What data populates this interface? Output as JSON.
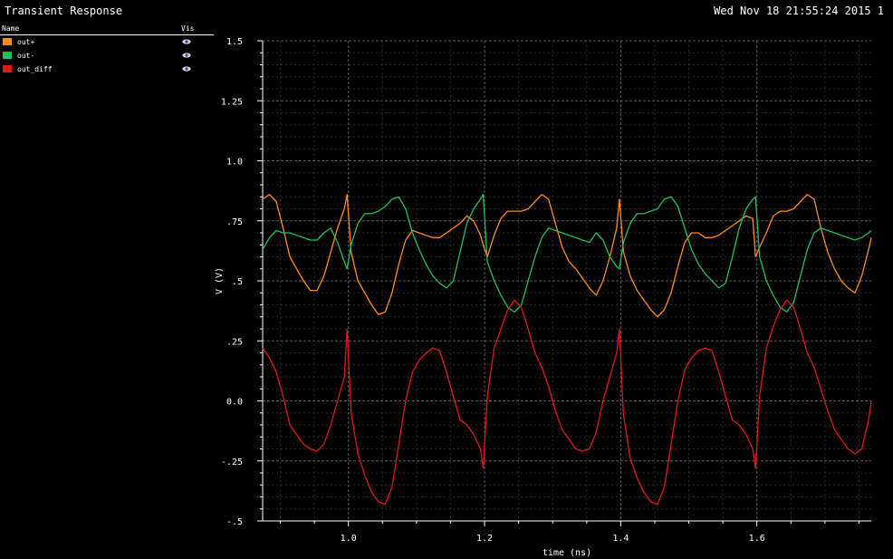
{
  "header": {
    "title": "Transient Response",
    "datetime": "Wed Nov 18 21:55:24 2015 1"
  },
  "legend": {
    "name_header": "Name",
    "vis_header": "Vis",
    "items": [
      {
        "name": "out+",
        "color": "#ff8c1a"
      },
      {
        "name": "out-",
        "color": "#1fc060"
      },
      {
        "name": "out_diff",
        "color": "#e01818"
      }
    ]
  },
  "chart_data": {
    "type": "line",
    "xlabel": "time (ns)",
    "ylabel": "V (V)",
    "xlim": [
      0.874,
      1.768
    ],
    "ylim": [
      -0.5,
      1.5
    ],
    "x_ticks": [
      1.0,
      1.2,
      1.4,
      1.6
    ],
    "x_tick_labels": [
      "1.0",
      "1.2",
      "1.4",
      "1.6"
    ],
    "y_ticks": [
      -0.5,
      -0.25,
      0.0,
      0.25,
      0.5,
      0.75,
      1.0,
      1.25,
      1.5
    ],
    "y_tick_labels": [
      "-.5",
      "-.25",
      "0.0",
      ".25",
      ".5",
      ".75",
      "1.0",
      "1.25",
      "1.5"
    ],
    "grid": true,
    "series": [
      {
        "name": "out+",
        "color": "#ff8c1a",
        "x": [
          0.874,
          0.884,
          0.894,
          0.904,
          0.914,
          0.924,
          0.934,
          0.944,
          0.954,
          0.964,
          0.974,
          0.984,
          0.994,
          0.998,
          1.004,
          1.014,
          1.024,
          1.034,
          1.044,
          1.054,
          1.064,
          1.074,
          1.084,
          1.094,
          1.104,
          1.114,
          1.124,
          1.134,
          1.144,
          1.154,
          1.164,
          1.174,
          1.184,
          1.194,
          1.198,
          1.204,
          1.214,
          1.224,
          1.234,
          1.244,
          1.254,
          1.264,
          1.274,
          1.284,
          1.294,
          1.304,
          1.314,
          1.324,
          1.334,
          1.344,
          1.354,
          1.364,
          1.374,
          1.384,
          1.394,
          1.398,
          1.404,
          1.414,
          1.424,
          1.434,
          1.444,
          1.454,
          1.464,
          1.474,
          1.484,
          1.494,
          1.504,
          1.514,
          1.524,
          1.534,
          1.544,
          1.554,
          1.564,
          1.574,
          1.584,
          1.594,
          1.598,
          1.604,
          1.614,
          1.624,
          1.634,
          1.644,
          1.654,
          1.664,
          1.674,
          1.684,
          1.694,
          1.704,
          1.714,
          1.724,
          1.734,
          1.744,
          1.754,
          1.764,
          1.768
        ],
        "y": [
          0.84,
          0.86,
          0.83,
          0.72,
          0.6,
          0.55,
          0.5,
          0.46,
          0.46,
          0.52,
          0.62,
          0.72,
          0.8,
          0.86,
          0.62,
          0.5,
          0.45,
          0.4,
          0.36,
          0.37,
          0.45,
          0.57,
          0.67,
          0.71,
          0.7,
          0.69,
          0.68,
          0.68,
          0.7,
          0.72,
          0.74,
          0.77,
          0.75,
          0.69,
          0.65,
          0.6,
          0.69,
          0.76,
          0.79,
          0.79,
          0.79,
          0.8,
          0.83,
          0.86,
          0.84,
          0.74,
          0.64,
          0.58,
          0.55,
          0.51,
          0.47,
          0.44,
          0.5,
          0.6,
          0.72,
          0.84,
          0.62,
          0.52,
          0.46,
          0.42,
          0.38,
          0.35,
          0.38,
          0.45,
          0.56,
          0.66,
          0.7,
          0.7,
          0.68,
          0.68,
          0.69,
          0.71,
          0.73,
          0.75,
          0.77,
          0.76,
          0.6,
          0.64,
          0.7,
          0.77,
          0.79,
          0.79,
          0.8,
          0.83,
          0.86,
          0.84,
          0.72,
          0.62,
          0.55,
          0.5,
          0.47,
          0.45,
          0.52,
          0.63,
          0.68
        ]
      },
      {
        "name": "out-",
        "color": "#1fc060",
        "x": [
          0.874,
          0.884,
          0.894,
          0.904,
          0.914,
          0.924,
          0.934,
          0.944,
          0.954,
          0.964,
          0.974,
          0.984,
          0.994,
          0.998,
          1.004,
          1.014,
          1.024,
          1.034,
          1.044,
          1.054,
          1.064,
          1.074,
          1.084,
          1.094,
          1.104,
          1.114,
          1.124,
          1.134,
          1.144,
          1.154,
          1.164,
          1.174,
          1.184,
          1.194,
          1.198,
          1.204,
          1.214,
          1.224,
          1.234,
          1.244,
          1.254,
          1.264,
          1.274,
          1.284,
          1.294,
          1.304,
          1.314,
          1.324,
          1.334,
          1.344,
          1.354,
          1.364,
          1.374,
          1.384,
          1.394,
          1.398,
          1.404,
          1.414,
          1.424,
          1.434,
          1.444,
          1.454,
          1.464,
          1.474,
          1.484,
          1.494,
          1.504,
          1.514,
          1.524,
          1.534,
          1.544,
          1.554,
          1.564,
          1.574,
          1.584,
          1.594,
          1.598,
          1.604,
          1.614,
          1.624,
          1.634,
          1.644,
          1.654,
          1.664,
          1.674,
          1.684,
          1.694,
          1.704,
          1.714,
          1.724,
          1.734,
          1.744,
          1.754,
          1.764,
          1.768
        ],
        "y": [
          0.63,
          0.68,
          0.71,
          0.7,
          0.7,
          0.69,
          0.68,
          0.67,
          0.67,
          0.7,
          0.72,
          0.66,
          0.58,
          0.55,
          0.65,
          0.74,
          0.78,
          0.78,
          0.79,
          0.81,
          0.84,
          0.85,
          0.8,
          0.7,
          0.63,
          0.57,
          0.52,
          0.49,
          0.47,
          0.5,
          0.62,
          0.74,
          0.8,
          0.84,
          0.86,
          0.58,
          0.5,
          0.44,
          0.39,
          0.37,
          0.4,
          0.5,
          0.6,
          0.68,
          0.72,
          0.71,
          0.7,
          0.69,
          0.68,
          0.67,
          0.66,
          0.7,
          0.67,
          0.6,
          0.56,
          0.55,
          0.66,
          0.74,
          0.78,
          0.78,
          0.79,
          0.8,
          0.84,
          0.85,
          0.81,
          0.72,
          0.63,
          0.57,
          0.53,
          0.5,
          0.47,
          0.49,
          0.6,
          0.72,
          0.8,
          0.84,
          0.85,
          0.6,
          0.5,
          0.44,
          0.39,
          0.37,
          0.41,
          0.52,
          0.63,
          0.7,
          0.72,
          0.71,
          0.7,
          0.69,
          0.68,
          0.67,
          0.68,
          0.7,
          0.71
        ]
      },
      {
        "name": "out_diff",
        "color": "#e01818",
        "x": [
          0.874,
          0.884,
          0.894,
          0.904,
          0.914,
          0.924,
          0.934,
          0.944,
          0.954,
          0.964,
          0.974,
          0.984,
          0.994,
          0.998,
          1.004,
          1.014,
          1.024,
          1.034,
          1.044,
          1.054,
          1.064,
          1.074,
          1.084,
          1.094,
          1.104,
          1.114,
          1.124,
          1.134,
          1.144,
          1.154,
          1.164,
          1.174,
          1.184,
          1.194,
          1.198,
          1.204,
          1.214,
          1.224,
          1.234,
          1.244,
          1.254,
          1.264,
          1.274,
          1.284,
          1.294,
          1.304,
          1.314,
          1.324,
          1.334,
          1.344,
          1.354,
          1.364,
          1.374,
          1.384,
          1.394,
          1.398,
          1.404,
          1.414,
          1.424,
          1.434,
          1.444,
          1.454,
          1.464,
          1.474,
          1.484,
          1.494,
          1.504,
          1.514,
          1.524,
          1.534,
          1.544,
          1.554,
          1.564,
          1.574,
          1.584,
          1.594,
          1.598,
          1.604,
          1.614,
          1.624,
          1.634,
          1.644,
          1.654,
          1.664,
          1.674,
          1.684,
          1.694,
          1.704,
          1.714,
          1.724,
          1.734,
          1.744,
          1.754,
          1.764,
          1.768
        ],
        "y": [
          0.22,
          0.18,
          0.12,
          0.02,
          -0.1,
          -0.14,
          -0.18,
          -0.2,
          -0.21,
          -0.18,
          -0.1,
          0.0,
          0.1,
          0.3,
          -0.05,
          -0.22,
          -0.31,
          -0.38,
          -0.42,
          -0.43,
          -0.36,
          -0.18,
          0.0,
          0.12,
          0.17,
          0.2,
          0.22,
          0.21,
          0.12,
          0.02,
          -0.08,
          -0.1,
          -0.14,
          -0.2,
          -0.28,
          0.02,
          0.22,
          0.3,
          0.38,
          0.42,
          0.39,
          0.3,
          0.2,
          0.14,
          0.06,
          -0.04,
          -0.12,
          -0.16,
          -0.2,
          -0.21,
          -0.2,
          -0.13,
          0.0,
          0.1,
          0.2,
          0.3,
          -0.06,
          -0.24,
          -0.32,
          -0.38,
          -0.42,
          -0.43,
          -0.36,
          -0.18,
          0.0,
          0.13,
          0.18,
          0.21,
          0.22,
          0.21,
          0.12,
          0.02,
          -0.08,
          -0.1,
          -0.14,
          -0.2,
          -0.28,
          0.02,
          0.22,
          0.31,
          0.38,
          0.42,
          0.39,
          0.3,
          0.2,
          0.14,
          0.05,
          -0.04,
          -0.12,
          -0.16,
          -0.2,
          -0.22,
          -0.2,
          -0.08,
          0.0
        ]
      }
    ]
  }
}
